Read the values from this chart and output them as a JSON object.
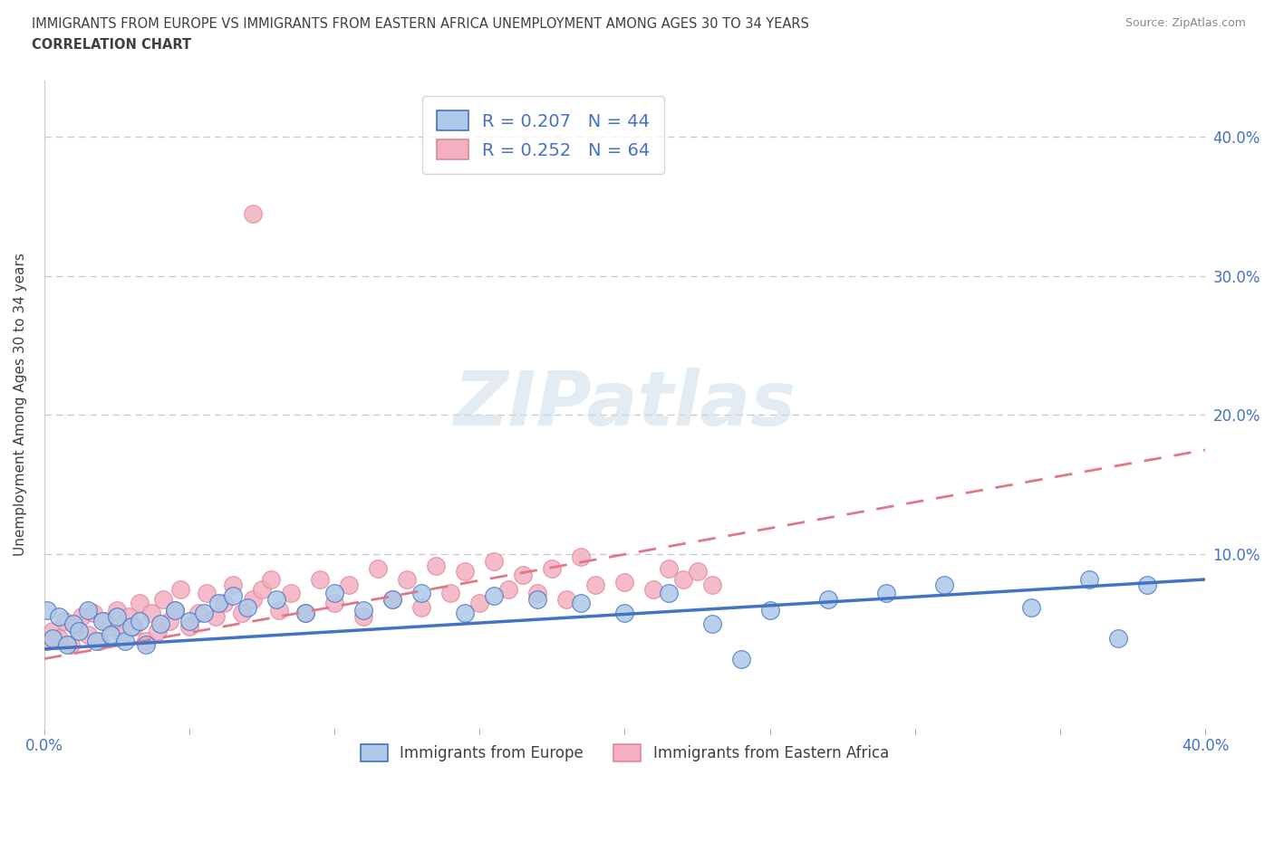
{
  "title_line1": "IMMIGRANTS FROM EUROPE VS IMMIGRANTS FROM EASTERN AFRICA UNEMPLOYMENT AMONG AGES 30 TO 34 YEARS",
  "title_line2": "CORRELATION CHART",
  "source": "Source: ZipAtlas.com",
  "ylabel": "Unemployment Among Ages 30 to 34 years",
  "legend_blue_label": "R = 0.207   N = 44",
  "legend_pink_label": "R = 0.252   N = 64",
  "blue_fill_color": "#adc8e8",
  "pink_fill_color": "#f4b0c0",
  "blue_edge_color": "#4472c4",
  "pink_edge_color": "#e08898",
  "blue_line_color": "#4472c4",
  "pink_line_color": "#e07888",
  "axis_label_color": "#4472c4",
  "title_color": "#404040",
  "grid_color": "#c8c8c8",
  "watermark_color": "#ccdde8",
  "watermark_text": "ZIPatlas",
  "bottom_legend_blue": "Immigrants from Europe",
  "bottom_legend_pink": "Immigrants from Eastern Africa",
  "xlim": [
    0.0,
    0.4
  ],
  "ylim": [
    -0.025,
    0.44
  ],
  "blue_trend_start": 0.032,
  "blue_trend_end": 0.082,
  "pink_trend_start": 0.025,
  "pink_trend_end": 0.175,
  "blue_x": [
    0.001,
    0.003,
    0.005,
    0.008,
    0.01,
    0.012,
    0.015,
    0.018,
    0.02,
    0.023,
    0.025,
    0.028,
    0.03,
    0.033,
    0.035,
    0.04,
    0.045,
    0.05,
    0.055,
    0.06,
    0.065,
    0.07,
    0.08,
    0.09,
    0.1,
    0.11,
    0.12,
    0.13,
    0.145,
    0.155,
    0.17,
    0.185,
    0.2,
    0.215,
    0.23,
    0.25,
    0.27,
    0.29,
    0.31,
    0.34,
    0.36,
    0.37,
    0.38,
    0.24
  ],
  "blue_y": [
    0.06,
    0.04,
    0.055,
    0.035,
    0.05,
    0.045,
    0.06,
    0.038,
    0.052,
    0.042,
    0.055,
    0.038,
    0.048,
    0.052,
    0.035,
    0.05,
    0.06,
    0.052,
    0.058,
    0.065,
    0.07,
    0.062,
    0.068,
    0.058,
    0.072,
    0.06,
    0.068,
    0.072,
    0.058,
    0.07,
    0.068,
    0.065,
    0.058,
    0.072,
    0.05,
    0.06,
    0.068,
    0.072,
    0.078,
    0.062,
    0.082,
    0.04,
    0.078,
    0.025
  ],
  "pink_x": [
    0.001,
    0.003,
    0.005,
    0.007,
    0.009,
    0.011,
    0.013,
    0.015,
    0.017,
    0.019,
    0.021,
    0.023,
    0.025,
    0.027,
    0.029,
    0.031,
    0.033,
    0.035,
    0.037,
    0.039,
    0.041,
    0.043,
    0.045,
    0.047,
    0.05,
    0.053,
    0.056,
    0.059,
    0.062,
    0.065,
    0.068,
    0.072,
    0.075,
    0.078,
    0.081,
    0.085,
    0.09,
    0.095,
    0.1,
    0.105,
    0.11,
    0.115,
    0.12,
    0.125,
    0.13,
    0.135,
    0.14,
    0.145,
    0.15,
    0.155,
    0.16,
    0.165,
    0.17,
    0.175,
    0.18,
    0.185,
    0.19,
    0.2,
    0.21,
    0.215,
    0.22,
    0.225,
    0.23,
    0.072
  ],
  "pink_y": [
    0.038,
    0.045,
    0.04,
    0.052,
    0.035,
    0.048,
    0.055,
    0.042,
    0.058,
    0.038,
    0.052,
    0.048,
    0.06,
    0.042,
    0.055,
    0.048,
    0.065,
    0.038,
    0.058,
    0.045,
    0.068,
    0.052,
    0.06,
    0.075,
    0.048,
    0.058,
    0.072,
    0.055,
    0.065,
    0.078,
    0.058,
    0.068,
    0.075,
    0.082,
    0.06,
    0.072,
    0.058,
    0.082,
    0.065,
    0.078,
    0.055,
    0.09,
    0.068,
    0.082,
    0.062,
    0.092,
    0.072,
    0.088,
    0.065,
    0.095,
    0.075,
    0.085,
    0.072,
    0.09,
    0.068,
    0.098,
    0.078,
    0.08,
    0.075,
    0.09,
    0.082,
    0.088,
    0.078,
    0.345
  ]
}
